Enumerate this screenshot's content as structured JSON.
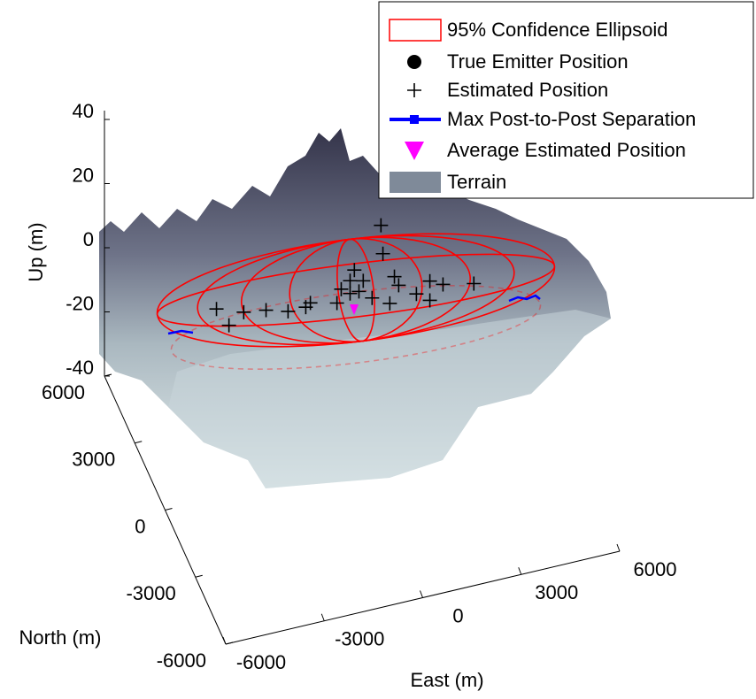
{
  "chart_data": {
    "type": "scatter3d",
    "xlabel": "East (m)",
    "ylabel": "North (m)",
    "zlabel": "Up (m)",
    "xlim": [
      -6000,
      6000
    ],
    "ylim": [
      -6000,
      6000
    ],
    "zlim": [
      -40,
      40
    ],
    "xticks": [
      -6000,
      -3000,
      0,
      3000,
      6000
    ],
    "yticks": [
      -6000,
      -3000,
      0,
      3000,
      6000
    ],
    "zticks": [
      -40,
      -20,
      0,
      20,
      40
    ],
    "legend": {
      "location": "northeast",
      "entries": [
        {
          "name": "95% Confidence Ellipsoid",
          "color": "#ff0000",
          "symbol": "rect-outline"
        },
        {
          "name": "True Emitter Position",
          "color": "#000000",
          "symbol": "circle"
        },
        {
          "name": "Estimated Position",
          "color": "#000000",
          "symbol": "plus"
        },
        {
          "name": "Max Post-to-Post Separation",
          "color": "#0000ff",
          "symbol": "line-square"
        },
        {
          "name": "Average Estimated Position",
          "color": "#ff00ff",
          "symbol": "triangle-down"
        },
        {
          "name": "Terrain",
          "color": "#7f8a99",
          "symbol": "rect"
        }
      ]
    },
    "series": [
      {
        "name": "Estimated Position",
        "color": "#000000",
        "x": [
          1930,
          1990,
          1120,
          990,
          1390,
          720,
          1260,
          1660,
          2340,
          2470,
          3010,
          3420,
          3420,
          4760,
          -3080,
          -2700,
          -2250,
          -1570,
          -900,
          -360,
          -220,
          590,
          990,
          2200,
          3820
        ],
        "y": [
          4400,
          4400,
          4400,
          4400,
          4400,
          4400,
          4400,
          4400,
          4400,
          4400,
          4400,
          4400,
          4400,
          4400,
          4400,
          4400,
          4400,
          4400,
          4400,
          4400,
          4400,
          4400,
          4400,
          4400,
          4400
        ],
        "z": [
          -1,
          -10,
          -13,
          -16,
          -17,
          -18,
          -20,
          -23,
          -18,
          -21,
          -25,
          -22,
          -28,
          -26,
          -15,
          -21,
          -18,
          -19,
          -21,
          -21,
          -20,
          -22,
          -20,
          -26,
          -24
        ]
      }
    ]
  }
}
